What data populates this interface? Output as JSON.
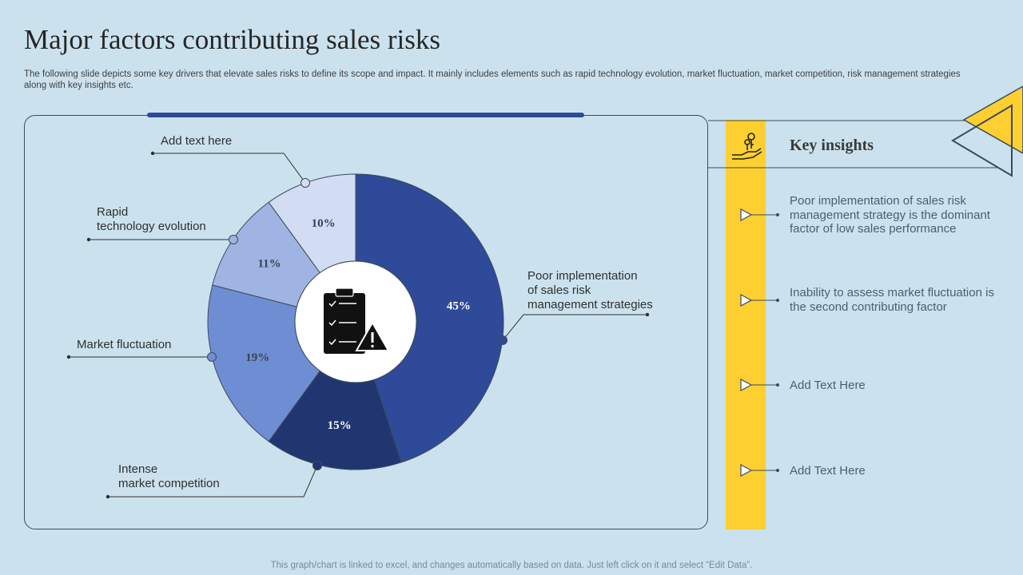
{
  "title": "Major factors contributing sales risks",
  "subtitle": "The following slide depicts some key drivers that elevate sales risks to define its scope and impact. It mainly includes elements such as rapid technology evolution, market fluctuation, market competition, risk management strategies along with key insights etc.",
  "chart_data": {
    "type": "pie",
    "variant": "donut",
    "title": "",
    "start_angle_deg": 0,
    "slices": [
      {
        "label": "Poor implementation of sales risk management strategies",
        "value": 45,
        "value_label": "45%",
        "color": "#2e4a98"
      },
      {
        "label": "Intense market competition",
        "value": 15,
        "value_label": "15%",
        "color": "#213670"
      },
      {
        "label": "Market fluctuation",
        "value": 19,
        "value_label": "19%",
        "color": "#6f8dd3"
      },
      {
        "label": "Rapid technology evolution",
        "value": 11,
        "value_label": "11%",
        "color": "#9fb4e2"
      },
      {
        "label": "Add text here",
        "value": 10,
        "value_label": "10%",
        "color": "#d2dcf2"
      }
    ]
  },
  "annotations": {
    "poor_impl": [
      "Poor implementation",
      "of sales risk",
      "management strategies"
    ],
    "competition": [
      "Intense",
      "market competition"
    ],
    "fluctuation": "Market fluctuation",
    "technology": [
      "Rapid",
      "technology evolution"
    ],
    "add_text": "Add text here"
  },
  "insights": {
    "heading": "Key insights",
    "items": [
      "Poor implementation of sales risk management strategy is the dominant factor of low sales performance",
      "Inability to assess market fluctuation is the second contributing factor",
      "Add Text Here",
      "Add Text Here"
    ]
  },
  "footer": "This graph/chart is linked to excel, and changes automatically based on data. Just left click on it and select “Edit Data”.",
  "icons": {
    "center": "clipboard-warning-icon",
    "insights": "hand-keys-icon"
  }
}
